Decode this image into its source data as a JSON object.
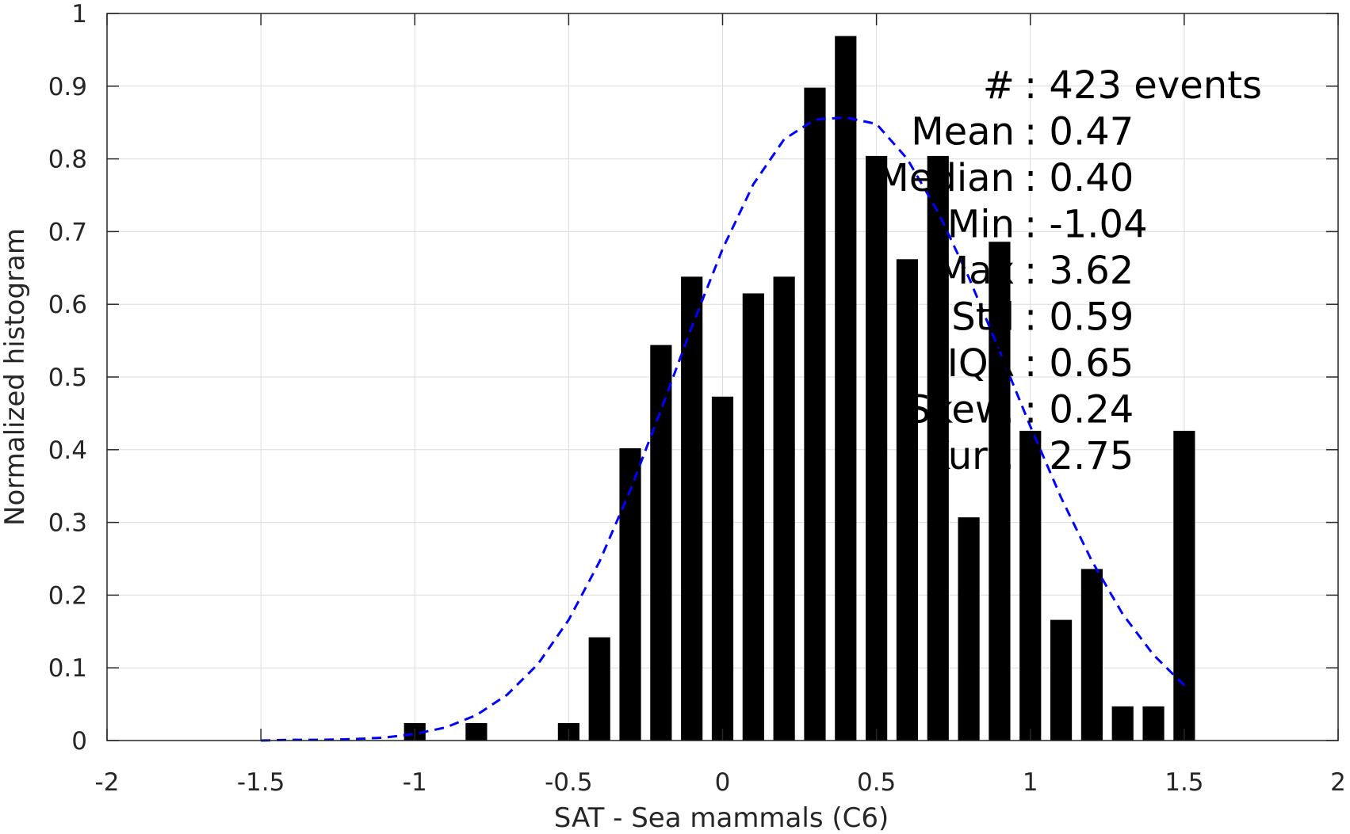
{
  "chart_data": {
    "type": "bar",
    "title": "",
    "xlabel": "SAT - Sea mammals (C6)",
    "ylabel": "Normalized histogram",
    "xlim": [
      -2,
      2
    ],
    "ylim": [
      0,
      1
    ],
    "x_ticks": [
      -2,
      -1.5,
      -1,
      -0.5,
      0,
      0.5,
      1,
      1.5,
      2
    ],
    "x_tick_labels": [
      "-2",
      "-1.5",
      "-1",
      "-0.5",
      "0",
      "0.5",
      "1",
      "1.5",
      "2"
    ],
    "y_ticks": [
      0,
      0.1,
      0.2,
      0.3,
      0.4,
      0.5,
      0.6,
      0.7,
      0.8,
      0.9,
      1
    ],
    "y_tick_labels": [
      "0",
      "0.1",
      "0.2",
      "0.3",
      "0.4",
      "0.5",
      "0.6",
      "0.7",
      "0.8",
      "0.9",
      "1"
    ],
    "grid": true,
    "bar_color": "#000000",
    "bar_width": 0.07,
    "series": [
      {
        "type": "bar",
        "x": [
          -1.0,
          -0.8,
          -0.5,
          -0.4,
          -0.3,
          -0.2,
          -0.1,
          0.0,
          0.1,
          0.2,
          0.3,
          0.4,
          0.5,
          0.6,
          0.7,
          0.8,
          0.9,
          1.0,
          1.1,
          1.2,
          1.3,
          1.4,
          1.5
        ],
        "values": [
          0.024,
          0.024,
          0.024,
          0.142,
          0.402,
          0.544,
          0.638,
          0.473,
          0.615,
          0.638,
          0.898,
          0.969,
          0.804,
          0.662,
          0.804,
          0.307,
          0.686,
          0.426,
          0.166,
          0.236,
          0.047,
          0.047,
          0.426
        ]
      },
      {
        "type": "line",
        "style": "dashed",
        "color": "#0000ff",
        "x": [
          -1.5,
          -1.4,
          -1.3,
          -1.2,
          -1.1,
          -1.0,
          -0.9,
          -0.8,
          -0.7,
          -0.6,
          -0.5,
          -0.4,
          -0.3,
          -0.2,
          -0.1,
          0.0,
          0.1,
          0.2,
          0.3,
          0.4,
          0.5,
          0.6,
          0.7,
          0.8,
          0.9,
          1.0,
          1.1,
          1.2,
          1.3,
          1.4,
          1.5
        ],
        "values": [
          0.0,
          0.001,
          0.001,
          0.002,
          0.004,
          0.009,
          0.018,
          0.035,
          0.063,
          0.105,
          0.166,
          0.246,
          0.344,
          0.455,
          0.569,
          0.676,
          0.765,
          0.827,
          0.854,
          0.857,
          0.848,
          0.8,
          0.727,
          0.637,
          0.536,
          0.432,
          0.334,
          0.247,
          0.174,
          0.118,
          0.076
        ]
      }
    ],
    "stats_box": {
      "placement": "top-right",
      "lines": [
        {
          "label": "#",
          "value": ": 423 events"
        },
        {
          "label": "Mean",
          "value": ": 0.47"
        },
        {
          "label": "Median",
          "value": ": 0.40"
        },
        {
          "label": "Min",
          "value": ": -1.04"
        },
        {
          "label": "Max",
          "value": ": 3.62"
        },
        {
          "label": "Std",
          "value": ": 0.59"
        },
        {
          "label": "IQR",
          "value": ": 0.65"
        },
        {
          "label": "Skew.",
          "value": ": 0.24"
        },
        {
          "label": "Kurt.",
          "value": ": 2.75"
        }
      ]
    }
  }
}
